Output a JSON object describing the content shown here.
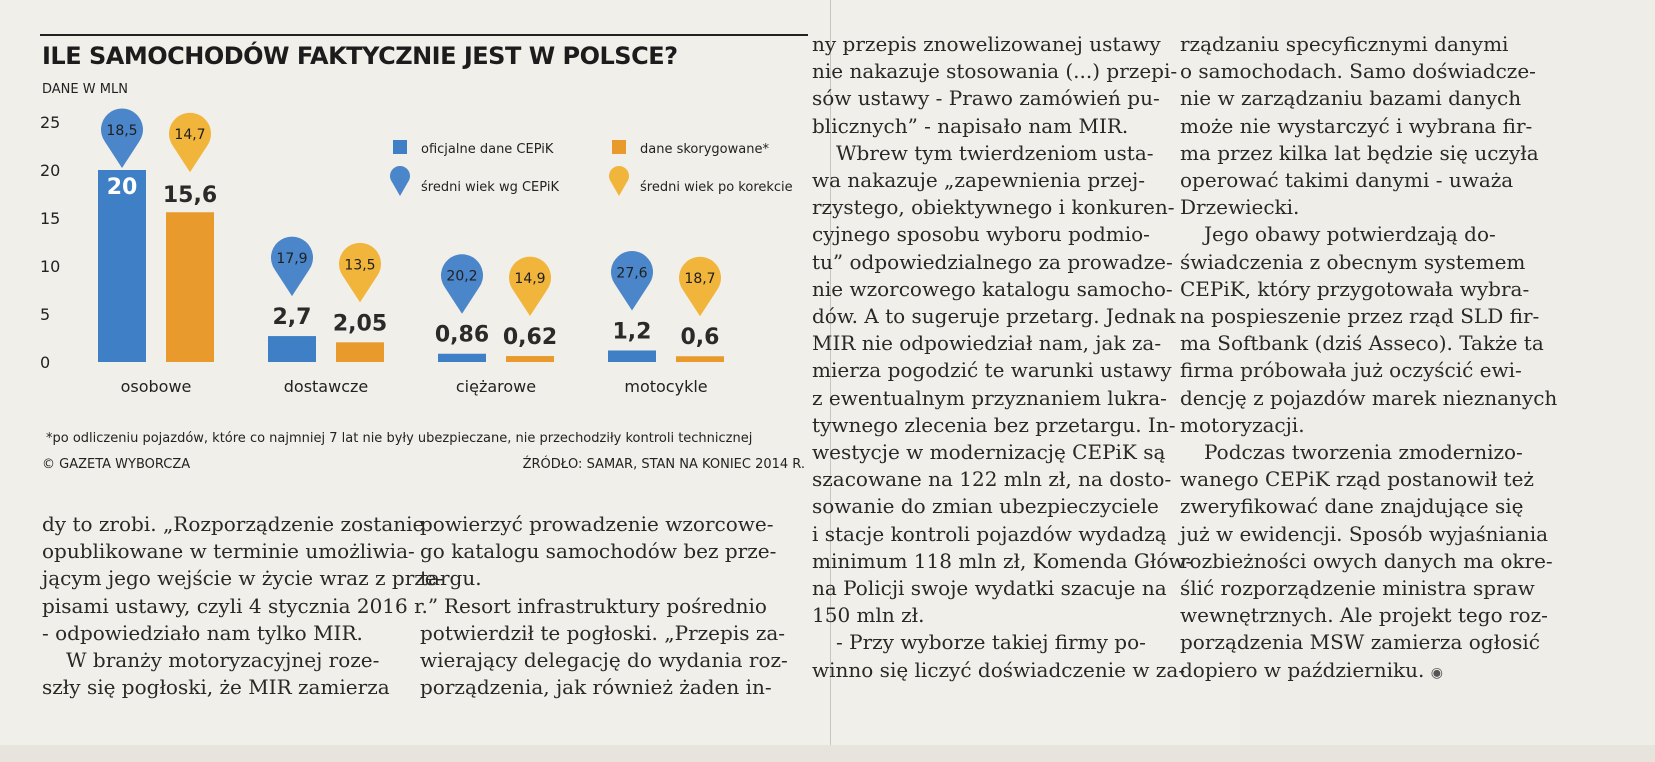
{
  "chart": {
    "title": "ILE SAMOCHODÓW FAKTYCZNIE JEST W POLSCE?",
    "unit": "DANE W MLN",
    "footnote": "*po odliczeniu pojazdów, które co najmniej 7 lat nie były ubezpieczane, nie przechodziły kontroli technicznej",
    "copyright": "© GAZETA WYBORCZA",
    "source": "ŹRÓDŁO: SAMAR, STAN NA KONIEC 2014 R.",
    "legend": {
      "official": "oficjalne dane CEPiK",
      "corrected": "dane skorygowane*",
      "age_cepik": "średni wiek wg CEPiK",
      "age_corrected": "średni wiek po korekcie"
    },
    "colors": {
      "blue": "#3f7fc6",
      "orange": "#e89b2c",
      "blue_pin": "#4a86c9",
      "yellow_pin": "#f2b53b"
    }
  },
  "chart_data": {
    "type": "bar",
    "categories": [
      "osobowe",
      "dostawcze",
      "ciężarowe",
      "motocykle"
    ],
    "ylim": [
      0,
      25
    ],
    "yticks": [
      "0",
      "5",
      "10",
      "15",
      "20",
      "25"
    ],
    "series": [
      {
        "name": "oficjalne dane CEPiK",
        "values": [
          20,
          2.7,
          0.86,
          1.2
        ],
        "labels": [
          "20",
          "2,7",
          "0,86",
          "1,2"
        ]
      },
      {
        "name": "dane skorygowane*",
        "values": [
          15.6,
          2.05,
          0.62,
          0.6
        ],
        "labels": [
          "15,6",
          "2,05",
          "0,62",
          "0,6"
        ]
      }
    ],
    "ages": {
      "cepik": [
        "18,5",
        "17,9",
        "20,2",
        "27,6"
      ],
      "corrected": [
        "14,7",
        "13,5",
        "14,9",
        "18,7"
      ]
    },
    "grid": false,
    "legend_position": "top-right"
  },
  "articles": {
    "col1": [
      "dy to zrobi. „Rozporządzenie zostanie",
      "opublikowane w terminie umożliwia-",
      "jącym jego wejście w życie wraz z prze-",
      "pisami ustawy, czyli 4 stycznia 2016 r.”",
      "- odpowiedziało nam tylko MIR.",
      "W branży motoryzacyjnej roze-",
      "szły się pogłoski, że MIR zamierza"
    ],
    "col2": [
      "powierzyć prowadzenie wzorcowe-",
      "go katalogu samochodów bez prze-",
      "targu.",
      "Resort infrastruktury pośrednio",
      "potwierdził te pogłoski. „Przepis za-",
      "wierający delegację do wydania roz-",
      "porządzenia, jak również żaden in-"
    ],
    "col3": [
      "ny przepis znowelizowanej ustawy",
      "nie nakazuje stosowania (...) przepi-",
      "sów ustawy - Prawo zamówień pu-",
      "blicznych” - napisało nam MIR.",
      "Wbrew tym twierdzeniom usta-",
      "wa nakazuje „zapewnienia przej-",
      "rzystego, obiektywnego i konkuren-",
      "cyjnego sposobu wyboru podmio-",
      "tu” odpowiedzialnego za prowadze-",
      "nie wzorcowego katalogu samocho-",
      "dów. A to sugeruje przetarg. Jednak",
      "MIR nie odpowiedział nam, jak za-",
      "mierza pogodzić te warunki ustawy",
      "z ewentualnym przyznaniem lukra-",
      "tywnego zlecenia bez przetargu. In-",
      "westycje w modernizację CEPiK są",
      "szacowane na 122 mln zł, na dosto-",
      "sowanie do zmian ubezpieczyciele",
      "i stacje kontroli pojazdów wydadzą",
      "minimum 118 mln zł, Komenda Głów-",
      "na Policji swoje wydatki szacuje na",
      "150 mln zł.",
      "- Przy wyborze takiej firmy po-",
      "winno się liczyć doświadczenie w za-"
    ],
    "col4": [
      "rządzaniu specyficznymi danymi",
      "o samochodach. Samo doświadcze-",
      "nie w zarządzaniu bazami danych",
      "może nie wystarczyć i wybrana fir-",
      "ma przez kilka lat będzie się uczyła",
      "operować takimi danymi - uważa",
      "Drzewiecki.",
      "Jego obawy potwierdzają do-",
      "świadczenia z obecnym systemem",
      "CEPiK, który przygotowała wybra-",
      "na pospieszenie przez rząd SLD fir-",
      "ma Softbank (dziś Asseco). Także ta",
      "firma próbowała już oczyścić ewi-",
      "dencję z pojazdów marek nieznanych",
      "motoryzacji.",
      "Podczas tworzenia zmodernizo-",
      "wanego CEPiK rząd postanowił też",
      "zweryfikować dane znajdujące się",
      "już w ewidencji. Sposób wyjaśniania",
      "rozbieżności owych danych ma okre-",
      "ślić rozporządzenie ministra spraw",
      "wewnętrznych. Ale projekt tego roz-",
      "porządzenia MSW zamierza ogłosić",
      "dopiero w październiku."
    ]
  }
}
